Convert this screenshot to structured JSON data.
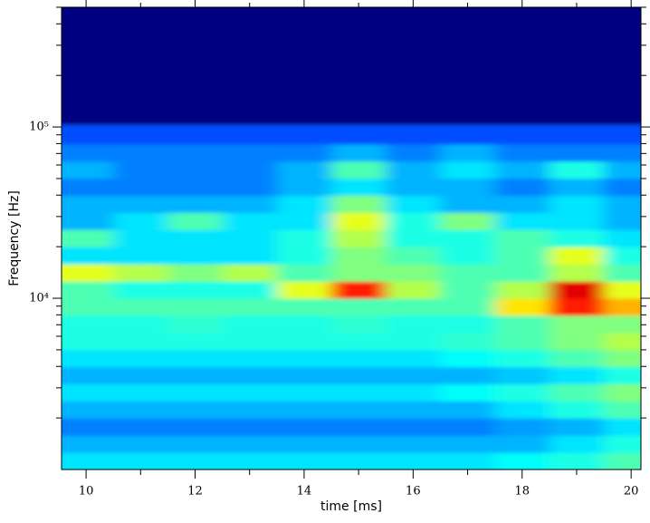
{
  "chart_data": {
    "type": "heatmap",
    "xlabel": "time [ms]",
    "ylabel": "Frequency [Hz]",
    "colormap": "jet",
    "x": [
      10,
      11,
      12,
      13,
      14,
      15,
      16,
      17,
      18,
      19,
      20
    ],
    "y": [
      1120,
      1410,
      1780,
      2240,
      2820,
      3550,
      4470,
      5620,
      7080,
      8910,
      11200,
      14100,
      17800,
      22400,
      28200,
      35500,
      44700,
      56200,
      70800,
      89100,
      120000
    ],
    "values": [
      [
        0.35,
        0.35,
        0.35,
        0.35,
        0.35,
        0.35,
        0.35,
        0.35,
        0.38,
        0.4,
        0.45
      ],
      [
        0.3,
        0.3,
        0.3,
        0.3,
        0.3,
        0.3,
        0.3,
        0.3,
        0.3,
        0.35,
        0.4
      ],
      [
        0.25,
        0.25,
        0.25,
        0.25,
        0.25,
        0.25,
        0.25,
        0.25,
        0.28,
        0.3,
        0.35
      ],
      [
        0.3,
        0.3,
        0.3,
        0.3,
        0.3,
        0.3,
        0.3,
        0.3,
        0.35,
        0.4,
        0.45
      ],
      [
        0.35,
        0.35,
        0.35,
        0.35,
        0.35,
        0.35,
        0.35,
        0.38,
        0.4,
        0.45,
        0.5
      ],
      [
        0.3,
        0.3,
        0.3,
        0.3,
        0.3,
        0.3,
        0.3,
        0.3,
        0.32,
        0.35,
        0.4
      ],
      [
        0.35,
        0.35,
        0.35,
        0.35,
        0.35,
        0.35,
        0.35,
        0.38,
        0.4,
        0.45,
        0.5
      ],
      [
        0.4,
        0.4,
        0.4,
        0.4,
        0.4,
        0.4,
        0.4,
        0.42,
        0.45,
        0.5,
        0.55
      ],
      [
        0.4,
        0.4,
        0.42,
        0.4,
        0.4,
        0.42,
        0.4,
        0.4,
        0.45,
        0.5,
        0.5
      ],
      [
        0.45,
        0.45,
        0.45,
        0.45,
        0.45,
        0.45,
        0.45,
        0.45,
        0.65,
        0.85,
        0.7
      ],
      [
        0.45,
        0.4,
        0.4,
        0.4,
        0.6,
        0.85,
        0.55,
        0.45,
        0.55,
        0.9,
        0.6
      ],
      [
        0.6,
        0.55,
        0.5,
        0.55,
        0.45,
        0.5,
        0.5,
        0.45,
        0.45,
        0.55,
        0.45
      ],
      [
        0.35,
        0.35,
        0.35,
        0.35,
        0.4,
        0.5,
        0.45,
        0.4,
        0.45,
        0.6,
        0.4
      ],
      [
        0.45,
        0.35,
        0.35,
        0.35,
        0.4,
        0.55,
        0.4,
        0.4,
        0.45,
        0.4,
        0.35
      ],
      [
        0.3,
        0.35,
        0.45,
        0.35,
        0.35,
        0.6,
        0.4,
        0.5,
        0.35,
        0.35,
        0.3
      ],
      [
        0.3,
        0.3,
        0.3,
        0.3,
        0.35,
        0.5,
        0.35,
        0.3,
        0.3,
        0.35,
        0.3
      ],
      [
        0.25,
        0.25,
        0.25,
        0.25,
        0.3,
        0.35,
        0.3,
        0.3,
        0.25,
        0.3,
        0.25
      ],
      [
        0.3,
        0.25,
        0.25,
        0.25,
        0.3,
        0.45,
        0.3,
        0.35,
        0.3,
        0.4,
        0.3
      ],
      [
        0.25,
        0.25,
        0.25,
        0.25,
        0.25,
        0.3,
        0.25,
        0.3,
        0.25,
        0.25,
        0.25
      ],
      [
        0.2,
        0.2,
        0.2,
        0.2,
        0.2,
        0.2,
        0.2,
        0.2,
        0.2,
        0.2,
        0.2
      ],
      [
        0,
        0,
        0,
        0,
        0,
        0,
        0,
        0,
        0,
        0,
        0
      ]
    ],
    "xlim": [
      9.55,
      20.18
    ],
    "xticks": [
      10,
      12,
      14,
      16,
      18,
      20
    ],
    "xminorticks": [
      11,
      13,
      15,
      17,
      19
    ],
    "ylim": [
      1000,
      500000
    ],
    "yscale": "log",
    "yticks": [
      {
        "value": 10000,
        "label": "10⁴"
      },
      {
        "value": 100000,
        "label": "10⁵"
      }
    ],
    "yminorticks": [
      2000,
      3000,
      4000,
      5000,
      6000,
      7000,
      8000,
      9000,
      20000,
      30000,
      40000,
      50000,
      60000,
      70000,
      80000,
      90000,
      200000,
      300000,
      400000,
      500000
    ]
  }
}
